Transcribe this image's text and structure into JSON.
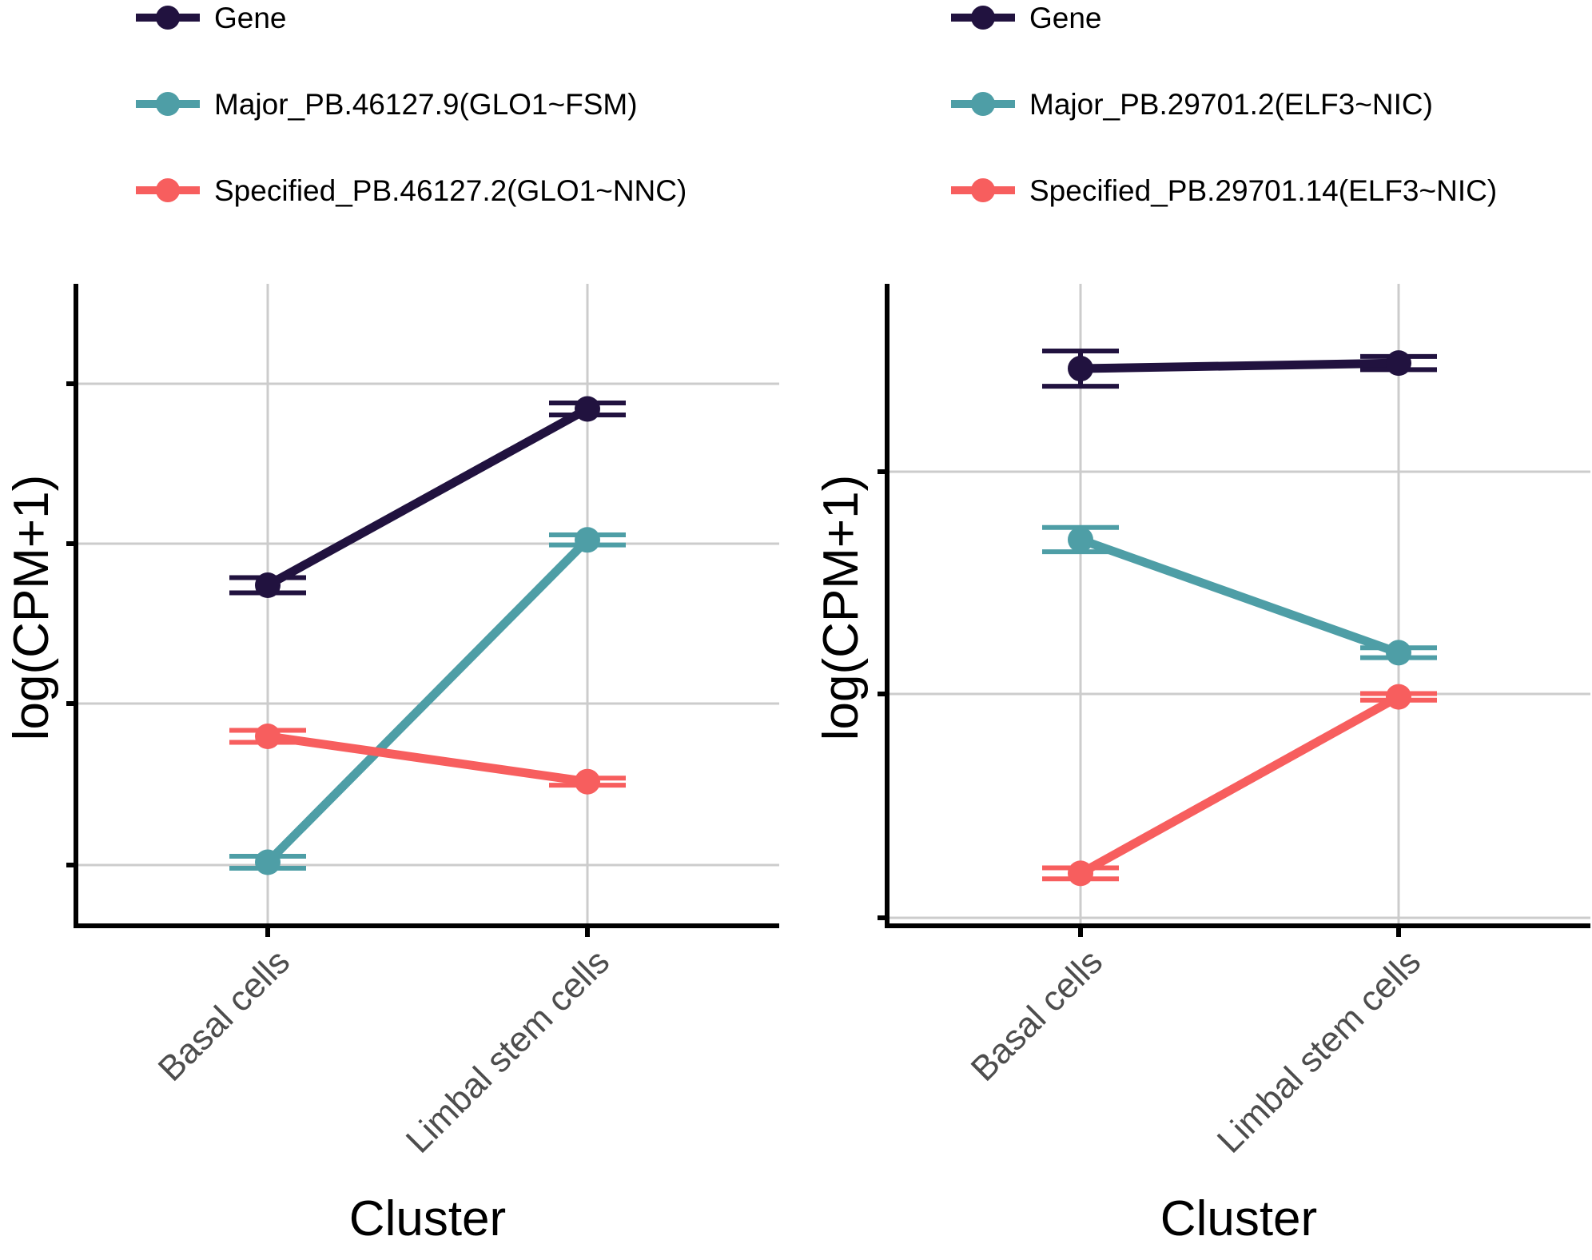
{
  "colors": {
    "gene": "#21123f",
    "major": "#4e9ea6",
    "specified": "#f75e5e",
    "grid": "#cccccc",
    "axis": "#000000"
  },
  "chart_data": [
    {
      "type": "line",
      "xlabel": "Cluster",
      "ylabel": "log(CPM+1)",
      "categories": [
        "Basal cells",
        "Limbal stem cells"
      ],
      "y_tick_count": 4,
      "y_tick_labels_shown": false,
      "ylim": [
        0,
        1
      ],
      "grid": true,
      "error_bars": true,
      "legend_position": "top",
      "series": [
        {
          "key": "gene",
          "name": "Gene",
          "values": [
            0.6,
            0.95
          ],
          "error": [
            0.015,
            0.012
          ]
        },
        {
          "key": "major",
          "name": "Major_PB.46127.9(GLO1~FSM)",
          "values": [
            0.05,
            0.69
          ],
          "error": [
            0.012,
            0.01
          ]
        },
        {
          "key": "specified",
          "name": "Specified_PB.46127.2(GLO1~NNC)",
          "values": [
            0.3,
            0.21
          ],
          "error": [
            0.012,
            0.007
          ]
        }
      ]
    },
    {
      "type": "line",
      "xlabel": "Cluster",
      "ylabel": "log(CPM+1)",
      "categories": [
        "Basal cells",
        "Limbal stem cells"
      ],
      "y_tick_count": 3,
      "y_tick_labels_shown": false,
      "ylim": [
        0,
        1
      ],
      "grid": true,
      "error_bars": true,
      "legend_position": "top",
      "series": [
        {
          "key": "gene",
          "name": "Gene",
          "values": [
            0.955,
            0.965
          ],
          "error": [
            0.032,
            0.012
          ]
        },
        {
          "key": "major",
          "name": "Major_PB.29701.2(ELF3~NIC)",
          "values": [
            0.645,
            0.44
          ],
          "error": [
            0.022,
            0.009
          ]
        },
        {
          "key": "specified",
          "name": "Specified_PB.29701.14(ELF3~NIC)",
          "values": [
            0.04,
            0.36
          ],
          "error": [
            0.01,
            0.006
          ]
        }
      ]
    }
  ]
}
